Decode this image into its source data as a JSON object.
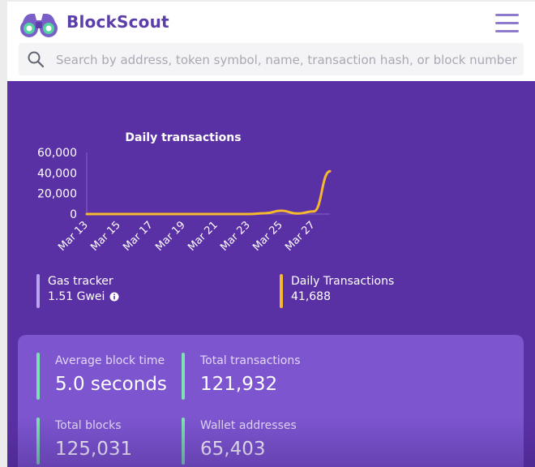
{
  "header": {
    "brand": "BlockScout",
    "search_placeholder": "Search by address, token symbol, name, transaction hash, or block number"
  },
  "colors": {
    "brand": "#5b3ea8",
    "hero_bg": "#5a31a5",
    "line": "#f5b82e",
    "gas_bar": "#b9a4f0",
    "stat_bar": "#7fe0b4"
  },
  "chart_data": {
    "type": "line",
    "title": "Daily transactions",
    "xlabel": "",
    "ylabel": "",
    "ylim": [
      0,
      60000
    ],
    "y_ticks": [
      "60,000",
      "40,000",
      "20,000",
      "0"
    ],
    "y_tick_values": [
      60000,
      40000,
      20000,
      0
    ],
    "x_tick_labels": [
      "Mar 13",
      "Mar 15",
      "Mar 17",
      "Mar 19",
      "Mar 21",
      "Mar 23",
      "Mar 25",
      "Mar 27"
    ],
    "x_tick_days": [
      13,
      15,
      17,
      19,
      21,
      23,
      25,
      27
    ],
    "xlim_days": [
      13,
      28
    ],
    "series": [
      {
        "name": "Daily Transactions",
        "x_days": [
          13,
          14,
          15,
          16,
          17,
          18,
          19,
          20,
          21,
          22,
          23,
          24,
          25,
          26,
          27,
          28
        ],
        "values": [
          0,
          0,
          0,
          0,
          0,
          0,
          0,
          0,
          0,
          0,
          0,
          800,
          3200,
          500,
          2500,
          41688
        ]
      }
    ]
  },
  "trackers": {
    "gas": {
      "label": "Gas tracker",
      "value": "1.51 Gwei"
    },
    "daily": {
      "label": "Daily Transactions",
      "value": "41,688"
    }
  },
  "stats": {
    "avg_block_time": {
      "label": "Average block time",
      "value": "5.0 seconds"
    },
    "total_transactions": {
      "label": "Total transactions",
      "value": "121,932"
    },
    "total_blocks": {
      "label": "Total blocks",
      "value": "125,031"
    },
    "wallet_addresses": {
      "label": "Wallet addresses",
      "value": "65,403"
    }
  }
}
